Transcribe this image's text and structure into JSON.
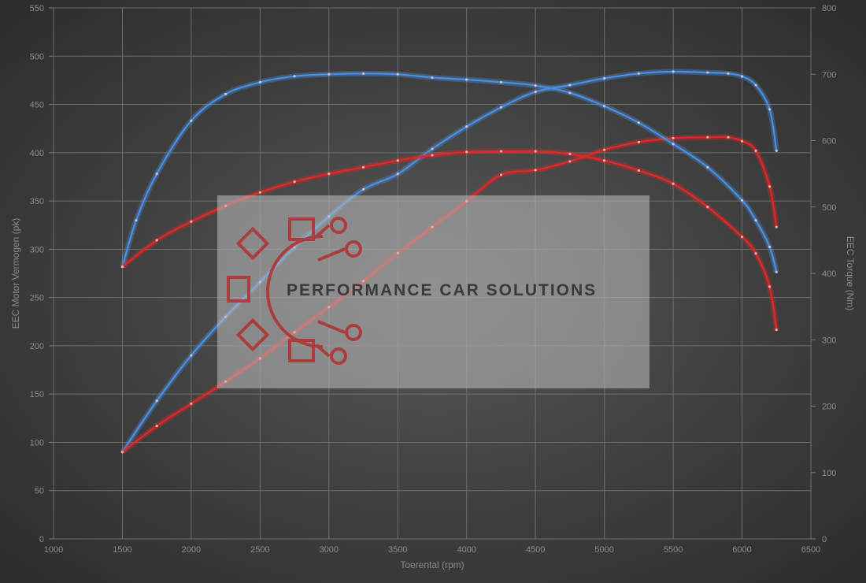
{
  "chart_data": {
    "type": "line",
    "xlabel": "Toerental (rpm)",
    "ylabel_left": "EEC Motor Vermogen (pk)",
    "ylabel_right": "EEC Torque (Nm)",
    "xlim": [
      1000,
      6500
    ],
    "ylim_left": [
      0,
      550
    ],
    "ylim_right": [
      0,
      800
    ],
    "x_ticks": [
      1000,
      1500,
      2000,
      2500,
      3000,
      3500,
      4000,
      4500,
      5000,
      5500,
      6000,
      6500
    ],
    "y_left_ticks": [
      0,
      50,
      100,
      150,
      200,
      250,
      300,
      350,
      400,
      450,
      500,
      550
    ],
    "y_right_ticks": [
      0,
      100,
      200,
      300,
      400,
      500,
      600,
      700,
      800
    ],
    "grid": true,
    "series": [
      {
        "color": "#4a8fe0",
        "axis": "left",
        "x": [
          1500,
          1750,
          2000,
          2250,
          2500,
          2750,
          3000,
          3250,
          3500,
          3750,
          4000,
          4250,
          4500,
          4750,
          5000,
          5250,
          5500,
          5750,
          5900,
          6000,
          6100,
          6200,
          6250
        ],
        "values": [
          90,
          143,
          190,
          230,
          266,
          302,
          334,
          362,
          378,
          404,
          427,
          447,
          463,
          470,
          477,
          482,
          484,
          483,
          482,
          479,
          470,
          445,
          402
        ]
      },
      {
        "color": "#e02828",
        "axis": "left",
        "x": [
          1500,
          1750,
          2000,
          2250,
          2500,
          2750,
          3000,
          3250,
          3500,
          3750,
          4000,
          4250,
          4500,
          4750,
          5000,
          5250,
          5500,
          5750,
          5900,
          6000,
          6100,
          6200,
          6250
        ],
        "values": [
          90,
          117,
          140,
          163,
          187,
          214,
          240,
          267,
          296,
          323,
          350,
          377,
          382,
          391,
          403,
          411,
          415,
          416,
          416,
          412,
          402,
          365,
          323
        ]
      },
      {
        "color": "#4a8fe0",
        "axis": "right",
        "x": [
          1500,
          1600,
          1750,
          2000,
          2250,
          2500,
          2750,
          3000,
          3250,
          3500,
          3750,
          4000,
          4250,
          4500,
          4750,
          5000,
          5250,
          5500,
          5750,
          6000,
          6100,
          6200,
          6250
        ],
        "values": [
          410,
          480,
          550,
          630,
          670,
          688,
          697,
          700,
          701,
          700,
          695,
          692,
          688,
          683,
          672,
          652,
          627,
          595,
          560,
          510,
          480,
          440,
          402
        ]
      },
      {
        "color": "#e02828",
        "axis": "right",
        "x": [
          1500,
          1750,
          2000,
          2250,
          2500,
          2750,
          3000,
          3250,
          3500,
          3750,
          4000,
          4250,
          4500,
          4750,
          5000,
          5250,
          5500,
          5750,
          6000,
          6100,
          6200,
          6250
        ],
        "values": [
          410,
          450,
          478,
          502,
          522,
          538,
          550,
          560,
          570,
          578,
          583,
          584,
          584,
          580,
          570,
          555,
          535,
          500,
          455,
          430,
          380,
          315
        ]
      }
    ]
  },
  "watermark": {
    "text": "PERFORMANCE CAR SOLUTIONS",
    "logo_icon": "gear-circuit-icon",
    "logo_color": "#b03030"
  }
}
